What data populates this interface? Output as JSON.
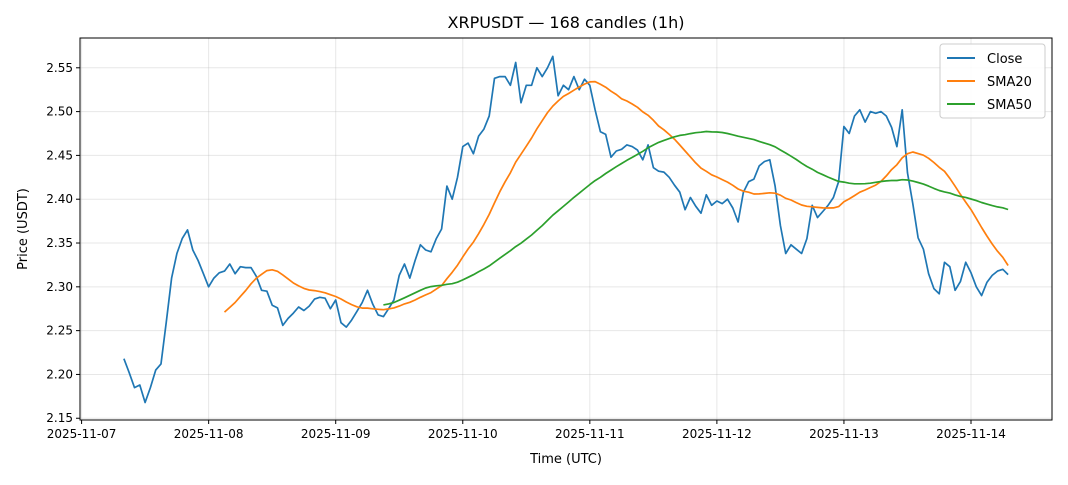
{
  "chart_data": {
    "type": "line",
    "title": "XRPUSDT — 168 candles (1h)",
    "xlabel": "Time (UTC)",
    "ylabel": "Price (USDT)",
    "start": "2025-11-07T08:00:00Z",
    "interval_hours": 1,
    "xlim_hours": [
      -8.3,
      175.3
    ],
    "ylim": [
      2.148,
      2.584
    ],
    "grid": true,
    "legend_position": "top-right",
    "x_ticks": [
      {
        "label": "2025-11-07",
        "hour": -8
      },
      {
        "label": "2025-11-08",
        "hour": 16
      },
      {
        "label": "2025-11-09",
        "hour": 40
      },
      {
        "label": "2025-11-10",
        "hour": 64
      },
      {
        "label": "2025-11-11",
        "hour": 88
      },
      {
        "label": "2025-11-12",
        "hour": 112
      },
      {
        "label": "2025-11-13",
        "hour": 136
      },
      {
        "label": "2025-11-14",
        "hour": 160
      }
    ],
    "y_ticks": [
      "2.15",
      "2.20",
      "2.25",
      "2.30",
      "2.35",
      "2.40",
      "2.45",
      "2.50",
      "2.55"
    ],
    "series": [
      {
        "name": "Close",
        "color": "#1f77b4",
        "values": [
          2.218,
          2.202,
          2.185,
          2.188,
          2.168,
          2.185,
          2.205,
          2.212,
          2.26,
          2.31,
          2.338,
          2.355,
          2.365,
          2.342,
          2.33,
          2.315,
          2.3,
          2.31,
          2.316,
          2.318,
          2.326,
          2.315,
          2.323,
          2.322,
          2.322,
          2.312,
          2.296,
          2.295,
          2.279,
          2.276,
          2.256,
          2.264,
          2.27,
          2.277,
          2.273,
          2.278,
          2.286,
          2.288,
          2.287,
          2.275,
          2.285,
          2.259,
          2.254,
          2.262,
          2.272,
          2.282,
          2.296,
          2.28,
          2.268,
          2.266,
          2.275,
          2.285,
          2.313,
          2.326,
          2.31,
          2.33,
          2.348,
          2.342,
          2.34,
          2.355,
          2.366,
          2.415,
          2.4,
          2.425,
          2.46,
          2.464,
          2.452,
          2.472,
          2.48,
          2.495,
          2.538,
          2.54,
          2.54,
          2.53,
          2.556,
          2.51,
          2.53,
          2.53,
          2.55,
          2.54,
          2.55,
          2.563,
          2.518,
          2.53,
          2.525,
          2.54,
          2.525,
          2.537,
          2.53,
          2.502,
          2.477,
          2.474,
          2.448,
          2.455,
          2.457,
          2.462,
          2.46,
          2.456,
          2.445,
          2.462,
          2.436,
          2.432,
          2.431,
          2.425,
          2.416,
          2.408,
          2.388,
          2.402,
          2.392,
          2.384,
          2.405,
          2.393,
          2.398,
          2.395,
          2.4,
          2.39,
          2.374,
          2.408,
          2.42,
          2.423,
          2.438,
          2.443,
          2.445,
          2.415,
          2.37,
          2.338,
          2.348,
          2.343,
          2.338,
          2.355,
          2.393,
          2.379,
          2.386,
          2.393,
          2.402,
          2.42,
          2.483,
          2.475,
          2.495,
          2.502,
          2.488,
          2.5,
          2.498,
          2.5,
          2.495,
          2.482,
          2.46,
          2.502,
          2.43,
          2.395,
          2.356,
          2.343,
          2.315,
          2.298,
          2.292,
          2.328,
          2.323,
          2.296,
          2.306,
          2.328,
          2.316,
          2.3,
          2.29,
          2.305,
          2.313,
          2.318,
          2.32,
          2.314
        ]
      },
      {
        "name": "SMA20",
        "color": "#ff7f0e",
        "window": 20
      },
      {
        "name": "SMA50",
        "color": "#2ca02c",
        "window": 50
      }
    ]
  }
}
